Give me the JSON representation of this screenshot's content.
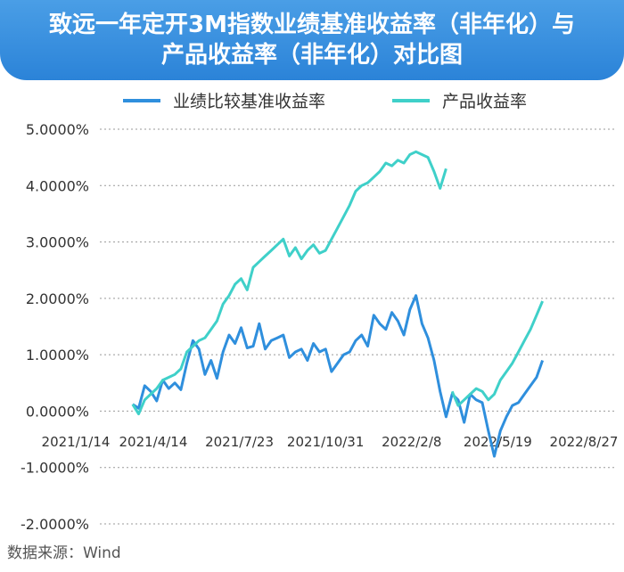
{
  "title": {
    "line1": "致远一年定开3M指数业绩基准收益率（非年化）与",
    "line2": "产品收益率（非年化）对比图"
  },
  "source": "数据来源：Wind",
  "colors": {
    "banner": "#3a93e0",
    "benchmark": "#2f8fdd",
    "product": "#3fd0c9",
    "grid": "#999999",
    "text": "#333333"
  },
  "chart_data": {
    "type": "line",
    "title": "致远一年定开3M指数业绩基准收益率（非年化）与产品收益率（非年化）对比图",
    "xlabel": "",
    "ylabel": "",
    "x_ticks": [
      "2021/1/14",
      "2021/4/14",
      "2021/7/23",
      "2021/10/31",
      "2022/2/8",
      "2022/5/19",
      "2022/8/27"
    ],
    "xlim": [
      "2021/1/14",
      "2022/8/27"
    ],
    "y_ticks": [
      "5.0000%",
      "4.0000%",
      "3.0000%",
      "2.0000%",
      "1.0000%",
      "0.0000%",
      "-1.0000%",
      "-2.0000%"
    ],
    "ylim": [
      -2.0,
      5.0
    ],
    "grid": "horizontal dotted",
    "legend": "top",
    "series": [
      {
        "name": "业绩比较基准收益率",
        "color": "#2f8fdd",
        "points": [
          [
            "2021/3/21",
            0.12
          ],
          [
            "2021/3/28",
            0.05
          ],
          [
            "2021/4/4",
            0.45
          ],
          [
            "2021/4/11",
            0.35
          ],
          [
            "2021/4/18",
            0.18
          ],
          [
            "2021/4/25",
            0.55
          ],
          [
            "2021/5/2",
            0.4
          ],
          [
            "2021/5/9",
            0.5
          ],
          [
            "2021/5/16",
            0.38
          ],
          [
            "2021/5/23",
            0.85
          ],
          [
            "2021/5/30",
            1.25
          ],
          [
            "2021/6/6",
            1.1
          ],
          [
            "2021/6/13",
            0.65
          ],
          [
            "2021/6/20",
            0.9
          ],
          [
            "2021/6/27",
            0.58
          ],
          [
            "2021/7/4",
            1.05
          ],
          [
            "2021/7/11",
            1.35
          ],
          [
            "2021/7/18",
            1.2
          ],
          [
            "2021/7/25",
            1.48
          ],
          [
            "2021/8/1",
            1.12
          ],
          [
            "2021/8/8",
            1.15
          ],
          [
            "2021/8/15",
            1.55
          ],
          [
            "2021/8/22",
            1.1
          ],
          [
            "2021/8/29",
            1.25
          ],
          [
            "2021/9/5",
            1.3
          ],
          [
            "2021/9/12",
            1.35
          ],
          [
            "2021/9/19",
            0.95
          ],
          [
            "2021/9/26",
            1.05
          ],
          [
            "2021/10/3",
            1.1
          ],
          [
            "2021/10/10",
            0.9
          ],
          [
            "2021/10/17",
            1.2
          ],
          [
            "2021/10/24",
            1.05
          ],
          [
            "2021/10/31",
            1.1
          ],
          [
            "2021/11/7",
            0.7
          ],
          [
            "2021/11/14",
            0.85
          ],
          [
            "2021/11/21",
            1.0
          ],
          [
            "2021/11/28",
            1.05
          ],
          [
            "2021/12/5",
            1.25
          ],
          [
            "2021/12/12",
            1.35
          ],
          [
            "2021/12/19",
            1.15
          ],
          [
            "2021/12/26",
            1.7
          ],
          [
            "2022/1/2",
            1.55
          ],
          [
            "2022/1/9",
            1.45
          ],
          [
            "2022/1/16",
            1.75
          ],
          [
            "2022/1/23",
            1.6
          ],
          [
            "2022/1/30",
            1.35
          ],
          [
            "2022/2/6",
            1.8
          ],
          [
            "2022/2/13",
            2.05
          ],
          [
            "2022/2/20",
            1.55
          ],
          [
            "2022/2/27",
            1.3
          ],
          [
            "2022/3/6",
            0.9
          ],
          [
            "2022/3/13",
            0.35
          ],
          [
            "2022/3/20",
            -0.1
          ],
          [
            "2022/3/27",
            0.3
          ],
          [
            "2022/4/3",
            0.2
          ],
          [
            "2022/4/10",
            -0.2
          ],
          [
            "2022/4/17",
            0.3
          ],
          [
            "2022/4/24",
            0.2
          ],
          [
            "2022/5/1",
            0.15
          ],
          [
            "2022/5/8",
            -0.35
          ],
          [
            "2022/5/15",
            -0.8
          ],
          [
            "2022/5/22",
            -0.35
          ],
          [
            "2022/5/29",
            -0.1
          ],
          [
            "2022/6/5",
            0.1
          ],
          [
            "2022/6/12",
            0.15
          ],
          [
            "2022/6/19",
            0.3
          ],
          [
            "2022/6/26",
            0.45
          ],
          [
            "2022/7/3",
            0.6
          ],
          [
            "2022/7/10",
            0.9
          ]
        ]
      },
      {
        "name": "产品收益率",
        "color": "#3fd0c9",
        "points": [
          [
            "2021/3/21",
            0.12
          ],
          [
            "2021/3/28",
            -0.05
          ],
          [
            "2021/4/4",
            0.2
          ],
          [
            "2021/4/11",
            0.3
          ],
          [
            "2021/4/18",
            0.4
          ],
          [
            "2021/4/25",
            0.55
          ],
          [
            "2021/5/2",
            0.6
          ],
          [
            "2021/5/9",
            0.65
          ],
          [
            "2021/5/16",
            0.75
          ],
          [
            "2021/5/23",
            1.05
          ],
          [
            "2021/5/30",
            1.15
          ],
          [
            "2021/6/6",
            1.25
          ],
          [
            "2021/6/13",
            1.3
          ],
          [
            "2021/6/20",
            1.45
          ],
          [
            "2021/6/27",
            1.6
          ],
          [
            "2021/7/4",
            1.9
          ],
          [
            "2021/7/11",
            2.05
          ],
          [
            "2021/7/18",
            2.25
          ],
          [
            "2021/7/25",
            2.35
          ],
          [
            "2021/8/1",
            2.15
          ],
          [
            "2021/8/8",
            2.55
          ],
          [
            "2021/8/15",
            2.65
          ],
          [
            "2021/8/22",
            2.75
          ],
          [
            "2021/8/29",
            2.85
          ],
          [
            "2021/9/5",
            2.95
          ],
          [
            "2021/9/12",
            3.05
          ],
          [
            "2021/9/19",
            2.75
          ],
          [
            "2021/9/26",
            2.9
          ],
          [
            "2021/10/3",
            2.7
          ],
          [
            "2021/10/10",
            2.85
          ],
          [
            "2021/10/17",
            2.95
          ],
          [
            "2021/10/24",
            2.8
          ],
          [
            "2021/10/31",
            2.85
          ],
          [
            "2021/11/7",
            3.05
          ],
          [
            "2021/11/14",
            3.25
          ],
          [
            "2021/11/21",
            3.45
          ],
          [
            "2021/11/28",
            3.65
          ],
          [
            "2021/12/5",
            3.9
          ],
          [
            "2021/12/12",
            4.0
          ],
          [
            "2021/12/19",
            4.05
          ],
          [
            "2021/12/26",
            4.15
          ],
          [
            "2022/1/2",
            4.25
          ],
          [
            "2022/1/9",
            4.4
          ],
          [
            "2022/1/16",
            4.35
          ],
          [
            "2022/1/23",
            4.45
          ],
          [
            "2022/1/30",
            4.4
          ],
          [
            "2022/2/6",
            4.55
          ],
          [
            "2022/2/13",
            4.6
          ],
          [
            "2022/2/20",
            4.55
          ],
          [
            "2022/2/27",
            4.5
          ],
          [
            "2022/3/6",
            4.25
          ],
          [
            "2022/3/13",
            3.95
          ],
          [
            "2022/3/20",
            4.3
          ],
          [
            "2022/3/27",
            0.35
          ],
          [
            "2022/4/3",
            0.1
          ],
          [
            "2022/4/10",
            0.2
          ],
          [
            "2022/4/17",
            0.3
          ],
          [
            "2022/4/24",
            0.4
          ],
          [
            "2022/5/1",
            0.35
          ],
          [
            "2022/5/8",
            0.2
          ],
          [
            "2022/5/15",
            0.3
          ],
          [
            "2022/5/22",
            0.55
          ],
          [
            "2022/5/29",
            0.7
          ],
          [
            "2022/6/5",
            0.85
          ],
          [
            "2022/6/12",
            1.05
          ],
          [
            "2022/6/19",
            1.25
          ],
          [
            "2022/6/26",
            1.45
          ],
          [
            "2022/7/3",
            1.7
          ],
          [
            "2022/7/10",
            1.95
          ]
        ]
      }
    ]
  }
}
